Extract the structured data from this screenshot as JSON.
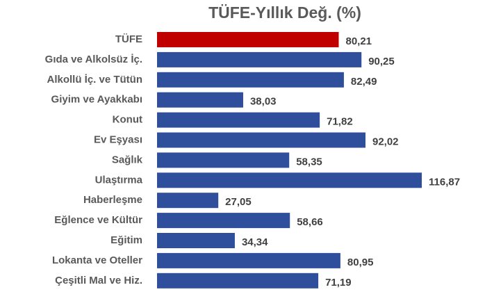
{
  "chart_data": {
    "type": "bar",
    "orientation": "horizontal",
    "title": "TÜFE-Yıllık Değ. (%)",
    "categories": [
      "TÜFE",
      "Gıda ve Alkolsüz İç.",
      "Alkollü İç. ve Tütün",
      "Giyim ve Ayakkabı",
      "Konut",
      "Ev Eşyası",
      "Sağlık",
      "Ulaştırma",
      "Haberleşme",
      "Eğlence ve Kültür",
      "Eğitim",
      "Lokanta ve Oteller",
      "Çeşitli Mal ve Hiz."
    ],
    "values": [
      80.21,
      90.25,
      82.49,
      38.03,
      71.82,
      92.02,
      58.35,
      116.87,
      27.05,
      58.66,
      34.34,
      80.95,
      71.19
    ],
    "value_labels": [
      "80,21",
      "90,25",
      "82,49",
      "38,03",
      "71,82",
      "92,02",
      "58,35",
      "116,87",
      "27,05",
      "58,66",
      "34,34",
      "80,95",
      "71,19"
    ],
    "colors": [
      "#c00000",
      "#2f4f9c",
      "#2f4f9c",
      "#2f4f9c",
      "#2f4f9c",
      "#2f4f9c",
      "#2f4f9c",
      "#2f4f9c",
      "#2f4f9c",
      "#2f4f9c",
      "#2f4f9c",
      "#2f4f9c",
      "#2f4f9c"
    ]
  }
}
